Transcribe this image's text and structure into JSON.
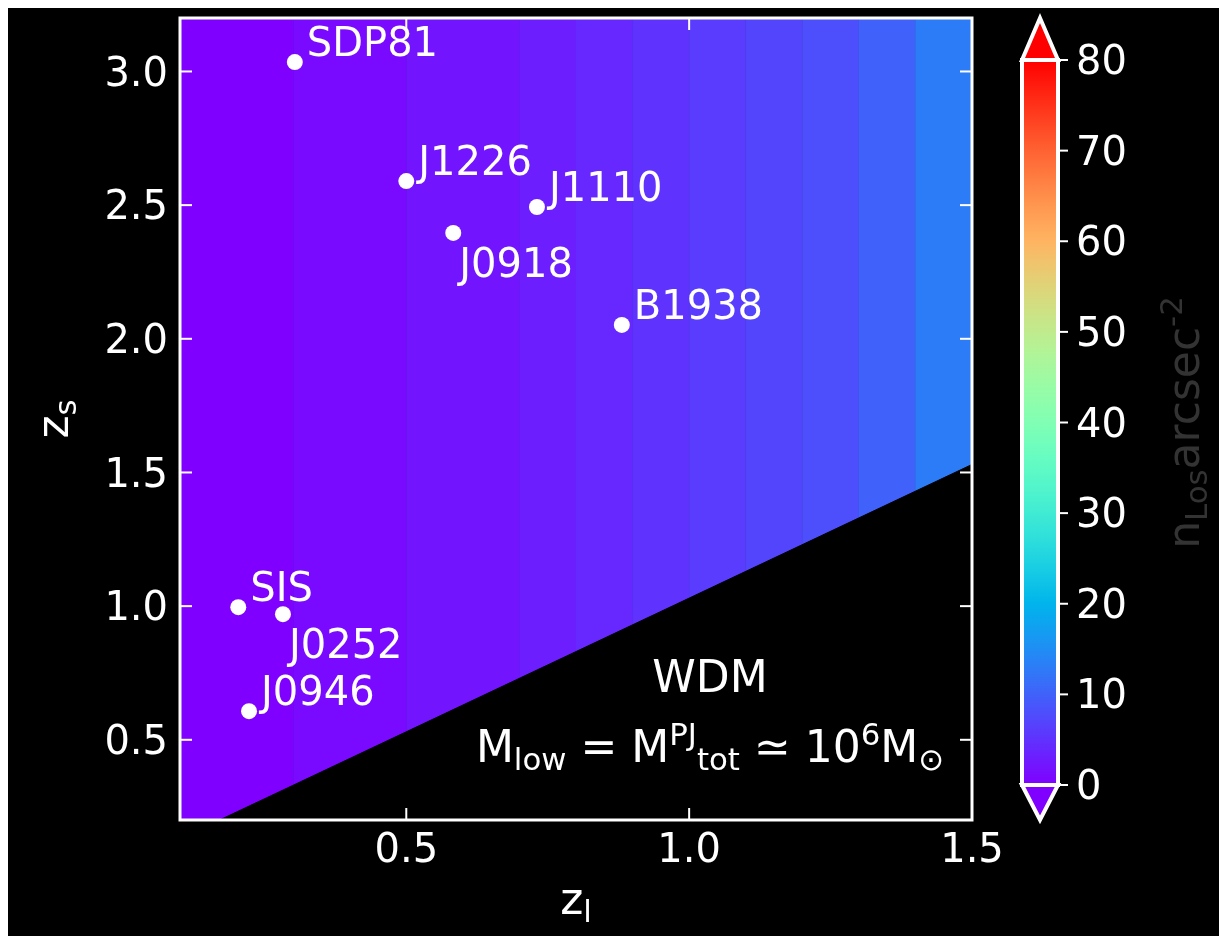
{
  "chart_data": {
    "type": "scatter",
    "xlabel": "z$_{l}$",
    "ylabel": "z$_{s}$",
    "clabel": "n$_{Los}$arcsec$^{-2}$",
    "xlim": [
      0.1,
      1.5
    ],
    "ylim": [
      0.2,
      3.2
    ],
    "xticks": [
      {
        "value": 0.5,
        "label": "0.5"
      },
      {
        "value": 1.0,
        "label": "1.0"
      },
      {
        "value": 1.5,
        "label": "1.5"
      }
    ],
    "yticks": [
      {
        "value": 0.5,
        "label": "0.5"
      },
      {
        "value": 1.0,
        "label": "1.0"
      },
      {
        "value": 1.5,
        "label": "1.5"
      },
      {
        "value": 2.0,
        "label": "2.0"
      },
      {
        "value": 2.5,
        "label": "2.5"
      },
      {
        "value": 3.0,
        "label": "3.0"
      }
    ],
    "clim": [
      0,
      80
    ],
    "cticks": [
      0,
      10,
      20,
      30,
      40,
      50,
      60,
      70,
      80
    ],
    "bands": [
      {
        "axis": "x",
        "from": 0.1,
        "to": 0.3,
        "color": "#8000ff"
      },
      {
        "axis": "x",
        "from": 0.3,
        "to": 0.5,
        "color": "#790aff"
      },
      {
        "axis": "x",
        "from": 0.5,
        "to": 0.7,
        "color": "#7314ff"
      },
      {
        "axis": "x",
        "from": 0.7,
        "to": 0.8,
        "color": "#6c1efe"
      },
      {
        "axis": "x",
        "from": 0.8,
        "to": 0.9,
        "color": "#6628fe"
      },
      {
        "axis": "x",
        "from": 0.9,
        "to": 1.0,
        "color": "#6032fe"
      },
      {
        "axis": "x",
        "from": 1.0,
        "to": 1.1,
        "color": "#593cfd"
      },
      {
        "axis": "x",
        "from": 1.1,
        "to": 1.2,
        "color": "#5345fc"
      },
      {
        "axis": "x",
        "from": 1.2,
        "to": 1.3,
        "color": "#4d4ffc"
      },
      {
        "axis": "x",
        "from": 1.3,
        "to": 1.4,
        "color": "#4062fa"
      },
      {
        "axis": "x",
        "from": 1.4,
        "to": 1.5,
        "color": "#2d7cf7"
      }
    ],
    "series": [
      {
        "type": "area",
        "color": "#000000",
        "x": [
          0.17,
          1.5
        ],
        "values": [
          0.2,
          1.53
        ]
      },
      {
        "type": "scatter",
        "marker": "circle",
        "color": "#ffffff",
        "x": [
          0.303,
          0.5,
          0.583,
          0.731,
          0.881,
          0.203,
          0.282,
          0.222
        ],
        "values": [
          3.035,
          2.59,
          2.396,
          2.493,
          2.052,
          0.996,
          0.97,
          0.607
        ]
      }
    ],
    "annotations": [
      {
        "text": "SDP81",
        "x": 0.303,
        "y": 3.035
      },
      {
        "text": "J1226",
        "x": 0.5,
        "y": 2.59
      },
      {
        "text": "J0918",
        "x": 0.583,
        "y": 2.396
      },
      {
        "text": "J1110",
        "x": 0.731,
        "y": 2.493
      },
      {
        "text": "B1938",
        "x": 0.881,
        "y": 2.052
      },
      {
        "text": "SIS",
        "x": 0.203,
        "y": 0.996
      },
      {
        "text": "J0252",
        "x": 0.282,
        "y": 0.97
      },
      {
        "text": "J0946",
        "x": 0.222,
        "y": 0.607
      },
      "WDM",
      "M$_{low}$ = M$^{PJ}$$_{tot}$ ≃ 10$^{6}$M$_{⊙}$"
    ]
  }
}
